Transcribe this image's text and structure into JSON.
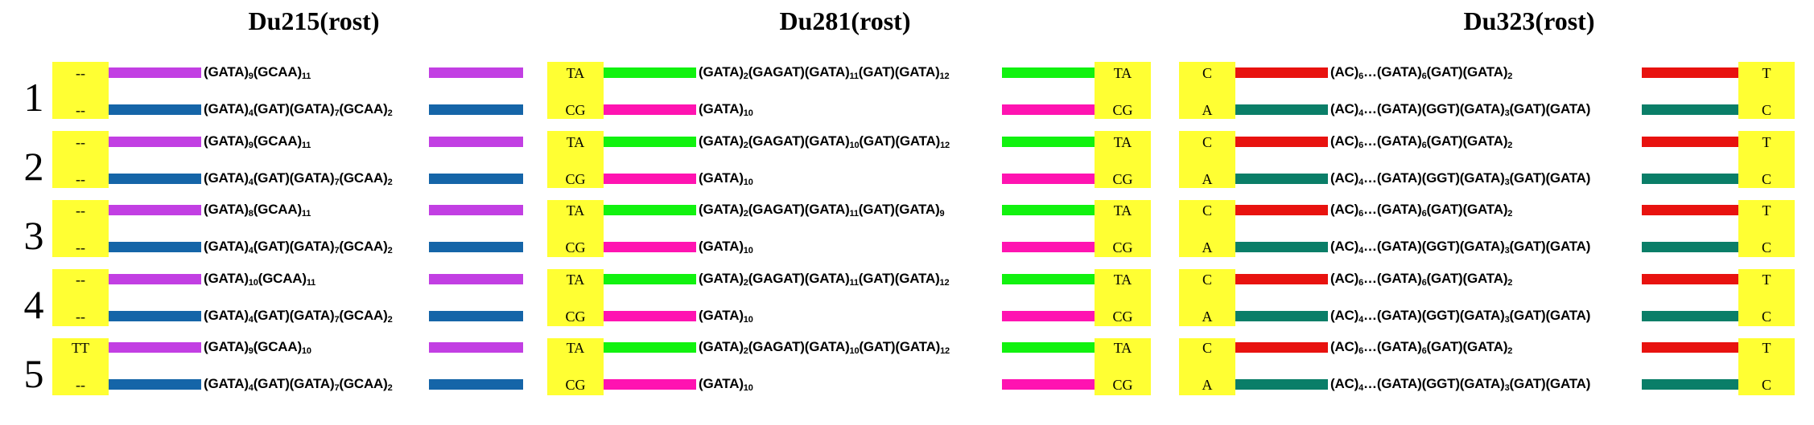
{
  "colors": {
    "box": "#ffff33",
    "purple": "#c23fe3",
    "blue": "#1565a8",
    "green": "#11f20f",
    "pink": "#ff13b1",
    "red": "#e8120f",
    "teal": "#0a7e68"
  },
  "sample_labels": [
    "1",
    "2",
    "3",
    "4",
    "5"
  ],
  "panels": [
    {
      "title": "Du215(rost)",
      "rows": [
        {
          "left": "--",
          "right": "",
          "color": "purple",
          "seq": [
            [
              "GATA",
              "9"
            ],
            [
              "GCAA",
              "11"
            ]
          ]
        },
        {
          "left": "--",
          "right": "",
          "color": "blue",
          "seq": [
            [
              "GATA",
              "4"
            ],
            [
              "GAT",
              ""
            ],
            [
              "GATA",
              "7"
            ],
            [
              "GCAA",
              "2"
            ]
          ]
        },
        {
          "left": "--",
          "right": "",
          "color": "purple",
          "seq": [
            [
              "GATA",
              "9"
            ],
            [
              "GCAA",
              "11"
            ]
          ]
        },
        {
          "left": "--",
          "right": "",
          "color": "blue",
          "seq": [
            [
              "GATA",
              "4"
            ],
            [
              "GAT",
              ""
            ],
            [
              "GATA",
              "7"
            ],
            [
              "GCAA",
              "2"
            ]
          ]
        },
        {
          "left": "--",
          "right": "",
          "color": "purple",
          "seq": [
            [
              "GATA",
              "8"
            ],
            [
              "GCAA",
              "11"
            ]
          ]
        },
        {
          "left": "--",
          "right": "",
          "color": "blue",
          "seq": [
            [
              "GATA",
              "4"
            ],
            [
              "GAT",
              ""
            ],
            [
              "GATA",
              "7"
            ],
            [
              "GCAA",
              "2"
            ]
          ]
        },
        {
          "left": "--",
          "right": "",
          "color": "purple",
          "seq": [
            [
              "GATA",
              "10"
            ],
            [
              "GCAA",
              "11"
            ]
          ]
        },
        {
          "left": "--",
          "right": "",
          "color": "blue",
          "seq": [
            [
              "GATA",
              "4"
            ],
            [
              "GAT",
              ""
            ],
            [
              "GATA",
              "7"
            ],
            [
              "GCAA",
              "2"
            ]
          ]
        },
        {
          "left": "TT",
          "right": "",
          "color": "purple",
          "seq": [
            [
              "GATA",
              "9"
            ],
            [
              "GCAA",
              "10"
            ]
          ]
        },
        {
          "left": "--",
          "right": "",
          "color": "blue",
          "seq": [
            [
              "GATA",
              "4"
            ],
            [
              "GAT",
              ""
            ],
            [
              "GATA",
              "7"
            ],
            [
              "GCAA",
              "2"
            ]
          ]
        }
      ]
    },
    {
      "title": "Du281(rost)",
      "rows": [
        {
          "left": "TA",
          "right": "TA",
          "color": "green",
          "seq": [
            [
              "GATA",
              "2"
            ],
            [
              "GAGAT",
              ""
            ],
            [
              "GATA",
              "11"
            ],
            [
              "GAT",
              ""
            ],
            [
              "GATA",
              "12"
            ]
          ]
        },
        {
          "left": "CG",
          "right": "CG",
          "color": "pink",
          "seq": [
            [
              "GATA",
              "10"
            ]
          ]
        },
        {
          "left": "TA",
          "right": "TA",
          "color": "green",
          "seq": [
            [
              "GATA",
              "2"
            ],
            [
              "GAGAT",
              ""
            ],
            [
              "GATA",
              "10"
            ],
            [
              "GAT",
              ""
            ],
            [
              "GATA",
              "12"
            ]
          ]
        },
        {
          "left": "CG",
          "right": "CG",
          "color": "pink",
          "seq": [
            [
              "GATA",
              "10"
            ]
          ]
        },
        {
          "left": "TA",
          "right": "TA",
          "color": "green",
          "seq": [
            [
              "GATA",
              "2"
            ],
            [
              "GAGAT",
              ""
            ],
            [
              "GATA",
              "11"
            ],
            [
              "GAT",
              ""
            ],
            [
              "GATA",
              "9"
            ]
          ]
        },
        {
          "left": "CG",
          "right": "CG",
          "color": "pink",
          "seq": [
            [
              "GATA",
              "10"
            ]
          ]
        },
        {
          "left": "TA",
          "right": "TA",
          "color": "green",
          "seq": [
            [
              "GATA",
              "2"
            ],
            [
              "GAGAT",
              ""
            ],
            [
              "GATA",
              "11"
            ],
            [
              "GAT",
              ""
            ],
            [
              "GATA",
              "12"
            ]
          ]
        },
        {
          "left": "CG",
          "right": "CG",
          "color": "pink",
          "seq": [
            [
              "GATA",
              "10"
            ]
          ]
        },
        {
          "left": "TA",
          "right": "TA",
          "color": "green",
          "seq": [
            [
              "GATA",
              "2"
            ],
            [
              "GAGAT",
              ""
            ],
            [
              "GATA",
              "10"
            ],
            [
              "GAT",
              ""
            ],
            [
              "GATA",
              "12"
            ]
          ]
        },
        {
          "left": "CG",
          "right": "CG",
          "color": "pink",
          "seq": [
            [
              "GATA",
              "10"
            ]
          ]
        }
      ]
    },
    {
      "title": "Du323(rost)",
      "rows": [
        {
          "left": "C",
          "right": "T",
          "color": "red",
          "seq": [
            [
              "AC",
              "6"
            ],
            [
              "…",
              ""
            ],
            [
              "GATA",
              "6"
            ],
            [
              "GAT",
              ""
            ],
            [
              "GATA",
              "2"
            ]
          ]
        },
        {
          "left": "A",
          "right": "C",
          "color": "teal",
          "seq": [
            [
              "AC",
              "4"
            ],
            [
              "…",
              ""
            ],
            [
              "GATA",
              ""
            ],
            [
              "GGT",
              ""
            ],
            [
              "GATA",
              "3"
            ],
            [
              "GAT",
              ""
            ],
            [
              "GATA",
              ""
            ]
          ]
        },
        {
          "left": "C",
          "right": "T",
          "color": "red",
          "seq": [
            [
              "AC",
              "6"
            ],
            [
              "…",
              ""
            ],
            [
              "GATA",
              "6"
            ],
            [
              "GAT",
              ""
            ],
            [
              "GATA",
              "2"
            ]
          ]
        },
        {
          "left": "A",
          "right": "C",
          "color": "teal",
          "seq": [
            [
              "AC",
              "4"
            ],
            [
              "…",
              ""
            ],
            [
              "GATA",
              ""
            ],
            [
              "GGT",
              ""
            ],
            [
              "GATA",
              "3"
            ],
            [
              "GAT",
              ""
            ],
            [
              "GATA",
              ""
            ]
          ]
        },
        {
          "left": "C",
          "right": "T",
          "color": "red",
          "seq": [
            [
              "AC",
              "6"
            ],
            [
              "…",
              ""
            ],
            [
              "GATA",
              "6"
            ],
            [
              "GAT",
              ""
            ],
            [
              "GATA",
              "2"
            ]
          ]
        },
        {
          "left": "A",
          "right": "C",
          "color": "teal",
          "seq": [
            [
              "AC",
              "4"
            ],
            [
              "…",
              ""
            ],
            [
              "GATA",
              ""
            ],
            [
              "GGT",
              ""
            ],
            [
              "GATA",
              "3"
            ],
            [
              "GAT",
              ""
            ],
            [
              "GATA",
              ""
            ]
          ]
        },
        {
          "left": "C",
          "right": "T",
          "color": "red",
          "seq": [
            [
              "AC",
              "6"
            ],
            [
              "…",
              ""
            ],
            [
              "GATA",
              "6"
            ],
            [
              "GAT",
              ""
            ],
            [
              "GATA",
              "2"
            ]
          ]
        },
        {
          "left": "A",
          "right": "C",
          "color": "teal",
          "seq": [
            [
              "AC",
              "4"
            ],
            [
              "…",
              ""
            ],
            [
              "GATA",
              ""
            ],
            [
              "GGT",
              ""
            ],
            [
              "GATA",
              "3"
            ],
            [
              "GAT",
              ""
            ],
            [
              "GATA",
              ""
            ]
          ]
        },
        {
          "left": "C",
          "right": "T",
          "color": "red",
          "seq": [
            [
              "AC",
              "6"
            ],
            [
              "…",
              ""
            ],
            [
              "GATA",
              "6"
            ],
            [
              "GAT",
              ""
            ],
            [
              "GATA",
              "2"
            ]
          ]
        },
        {
          "left": "A",
          "right": "C",
          "color": "teal",
          "seq": [
            [
              "AC",
              "4"
            ],
            [
              "…",
              ""
            ],
            [
              "GATA",
              ""
            ],
            [
              "GGT",
              ""
            ],
            [
              "GATA",
              "3"
            ],
            [
              "GAT",
              ""
            ],
            [
              "GATA",
              ""
            ]
          ]
        }
      ]
    }
  ]
}
